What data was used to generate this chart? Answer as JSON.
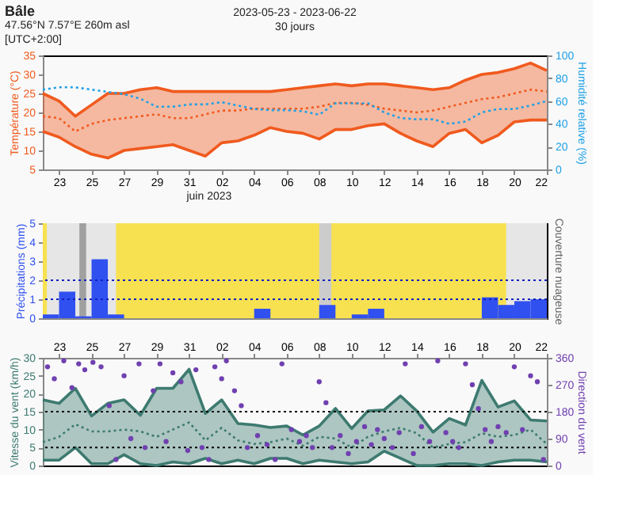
{
  "chart_data": [
    {
      "type": "line",
      "title": "Bâle",
      "subtitle": [
        "47.56°N 7.57°E 260m asl",
        "[UTC+2:00]"
      ],
      "annotations": [
        "2023-05-23 - 2023-06-22",
        "30 jours",
        "juin 2023"
      ],
      "ylabel": "Température (°C)",
      "y2label": "Humidité relative (%)",
      "x": [
        "2023-05-22",
        "2023-05-23",
        "2023-05-24",
        "2023-05-25",
        "2023-05-26",
        "2023-05-27",
        "2023-05-28",
        "2023-05-29",
        "2023-05-30",
        "2023-05-31",
        "2023-06-01",
        "2023-06-02",
        "2023-06-03",
        "2023-06-04",
        "2023-06-05",
        "2023-06-06",
        "2023-06-07",
        "2023-06-08",
        "2023-06-09",
        "2023-06-10",
        "2023-06-11",
        "2023-06-12",
        "2023-06-13",
        "2023-06-14",
        "2023-06-15",
        "2023-06-16",
        "2023-06-17",
        "2023-06-18",
        "2023-06-19",
        "2023-06-20",
        "2023-06-21",
        "2023-06-22"
      ],
      "xlim": [
        "2023-05-22",
        "2023-06-22"
      ],
      "xticks": [
        {
          "value": "2023-05-23",
          "label": "23"
        },
        {
          "value": "2023-05-25",
          "label": "25"
        },
        {
          "value": "2023-05-27",
          "label": "27"
        },
        {
          "value": "2023-05-29",
          "label": "29"
        },
        {
          "value": "2023-05-31",
          "label": "31"
        },
        {
          "value": "2023-06-02",
          "label": "02"
        },
        {
          "value": "2023-06-04",
          "label": "04"
        },
        {
          "value": "2023-06-06",
          "label": "06"
        },
        {
          "value": "2023-06-08",
          "label": "08"
        },
        {
          "value": "2023-06-10",
          "label": "10"
        },
        {
          "value": "2023-06-12",
          "label": "12"
        },
        {
          "value": "2023-06-14",
          "label": "14"
        },
        {
          "value": "2023-06-16",
          "label": "16"
        },
        {
          "value": "2023-06-18",
          "label": "18"
        },
        {
          "value": "2023-06-20",
          "label": "20"
        },
        {
          "value": "2023-06-22",
          "label": "22"
        }
      ],
      "ylim": [
        5,
        35
      ],
      "yticks": [
        5,
        10,
        15,
        20,
        25,
        30,
        35
      ],
      "y2lim": [
        0,
        100
      ],
      "y2ticks": [
        0,
        20,
        40,
        60,
        80,
        100
      ],
      "series": [
        {
          "color": "#f05a1e",
          "values": [
            15,
            13.5,
            11,
            9,
            8,
            10,
            10.5,
            11,
            11.5,
            10,
            8.5,
            12,
            12.5,
            14,
            16,
            15,
            14.5,
            13,
            15.5,
            15.5,
            16.5,
            17,
            14.5,
            12.5,
            11,
            14.5,
            15.5,
            12,
            14,
            17.5,
            18,
            18
          ]
        },
        {
          "color": "#f05a1e",
          "values": [
            25,
            23,
            19,
            22,
            25,
            25,
            26,
            26.5,
            25.5,
            25.5,
            25.5,
            25.5,
            25.5,
            25.5,
            25.5,
            26,
            26.5,
            27,
            27.5,
            27,
            27.5,
            27.5,
            27,
            26.5,
            26,
            26.5,
            28.5,
            30,
            30.5,
            31.5,
            33,
            31
          ]
        },
        {
          "color": "#f05a1e",
          "line_style": "dotted",
          "values": [
            19,
            18.5,
            15,
            17,
            18,
            18.5,
            19,
            19.5,
            18.5,
            18.5,
            19.5,
            20.5,
            20.5,
            21,
            21,
            21,
            21,
            21.5,
            22.5,
            22.5,
            22,
            21,
            20.5,
            20,
            20.5,
            21.5,
            22.5,
            23.5,
            24,
            25,
            26,
            25.5
          ],
          "lower": [
            15,
            13.5,
            11,
            9,
            8,
            10,
            10.5,
            11,
            11.5,
            10,
            8.5,
            12,
            12.5,
            14,
            16,
            15,
            14.5,
            13,
            15.5,
            15.5,
            16.5,
            17,
            14.5,
            12.5,
            11,
            14.5,
            15.5,
            12,
            14,
            17.5,
            18,
            18
          ],
          "upper": [
            25,
            23,
            19,
            22,
            25,
            25,
            26,
            26.5,
            25.5,
            25.5,
            25.5,
            25.5,
            25.5,
            25.5,
            25.5,
            26,
            26.5,
            27,
            27.5,
            27,
            27.5,
            27.5,
            27,
            26.5,
            26,
            26.5,
            28.5,
            30,
            30.5,
            31.5,
            33,
            31
          ]
        },
        {
          "color": "#1ea0e6",
          "line_style": "dotted",
          "axis": "y2",
          "values": [
            70,
            72,
            72,
            70,
            68,
            66,
            62,
            55,
            55,
            57,
            57,
            59,
            56,
            53,
            52,
            52,
            51,
            48,
            58,
            58,
            58,
            50,
            45,
            44,
            44,
            40,
            42,
            50,
            53,
            53,
            56,
            60
          ]
        }
      ]
    },
    {
      "type": "bar",
      "ylabel": "Précipitations (mm)",
      "y2label": "Couverture nuageuse",
      "xlim": [
        "2023-05-22",
        "2023-06-22"
      ],
      "ylim": [
        0,
        5
      ],
      "yticks": [
        0,
        1,
        2,
        3,
        4,
        5
      ],
      "tick_labels": "y",
      "bands": [
        {
          "axis": "x",
          "from": "2023-05-22",
          "to": "2023-06-22",
          "color": "#f7e150"
        },
        {
          "axis": "x",
          "from": "2023-05-22T06:00",
          "to": "2023-05-26T12:00",
          "color": "#e6e6e6"
        },
        {
          "axis": "x",
          "from": "2023-05-24T06:00",
          "to": "2023-05-24T16:00",
          "color": "#a0a0a0"
        },
        {
          "axis": "x",
          "from": "2023-06-08T00:00",
          "to": "2023-06-08T18:00",
          "color": "#cccccc"
        },
        {
          "axis": "x",
          "from": "2023-06-19T12:00",
          "to": "2023-06-22",
          "color": "#e6e6e6"
        }
      ],
      "ref_lines": [
        {
          "axis": "y",
          "value": 1,
          "color": "#1020c0",
          "line_style": "dotted"
        },
        {
          "axis": "y",
          "value": 2,
          "color": "#1020c0",
          "line_style": "dotted"
        }
      ],
      "series": [
        {
          "color": "#3050f0",
          "x": [
            "2023-05-22T12:00",
            "2023-05-23T12:00",
            "2023-05-24T12:00",
            "2023-05-25T12:00",
            "2023-05-26T12:00",
            "2023-05-27T12:00",
            "2023-05-28T12:00",
            "2023-05-29T12:00",
            "2023-05-30T12:00",
            "2023-05-31T12:00",
            "2023-06-01T12:00",
            "2023-06-02T12:00",
            "2023-06-03T12:00",
            "2023-06-04T12:00",
            "2023-06-05T12:00",
            "2023-06-06T12:00",
            "2023-06-07T12:00",
            "2023-06-08T12:00",
            "2023-06-09T12:00",
            "2023-06-10T12:00",
            "2023-06-11T12:00",
            "2023-06-12T12:00",
            "2023-06-13T12:00",
            "2023-06-14T12:00",
            "2023-06-15T12:00",
            "2023-06-16T12:00",
            "2023-06-17T12:00",
            "2023-06-18T12:00",
            "2023-06-19T12:00",
            "2023-06-20T12:00",
            "2023-06-21T12:00"
          ],
          "values": [
            0.2,
            1.4,
            0.1,
            3.1,
            0.2,
            0,
            0,
            0,
            0,
            0,
            0,
            0,
            0,
            0.5,
            0,
            0,
            0,
            0.7,
            0,
            0.2,
            0.5,
            0,
            0,
            0,
            0,
            0,
            0,
            1.1,
            0.7,
            0.9,
            1.0
          ]
        }
      ]
    },
    {
      "type": "line",
      "ylabel": "Vitesse du vent (km/h)",
      "y2label": "Direction du vent",
      "x": [
        "2023-05-22",
        "2023-05-23",
        "2023-05-24",
        "2023-05-25",
        "2023-05-26",
        "2023-05-27",
        "2023-05-28",
        "2023-05-29",
        "2023-05-30",
        "2023-05-31",
        "2023-06-01",
        "2023-06-02",
        "2023-06-03",
        "2023-06-04",
        "2023-06-05",
        "2023-06-06",
        "2023-06-07",
        "2023-06-08",
        "2023-06-09",
        "2023-06-10",
        "2023-06-11",
        "2023-06-12",
        "2023-06-13",
        "2023-06-14",
        "2023-06-15",
        "2023-06-16",
        "2023-06-17",
        "2023-06-18",
        "2023-06-19",
        "2023-06-20",
        "2023-06-21",
        "2023-06-22"
      ],
      "xlim": [
        "2023-05-22",
        "2023-06-22"
      ],
      "xticks": [
        {
          "value": "2023-05-23",
          "label": "23"
        },
        {
          "value": "2023-05-25",
          "label": "25"
        },
        {
          "value": "2023-05-27",
          "label": "27"
        },
        {
          "value": "2023-05-29",
          "label": "29"
        },
        {
          "value": "2023-05-31",
          "label": "31"
        },
        {
          "value": "2023-06-02",
          "label": "02"
        },
        {
          "value": "2023-06-04",
          "label": "04"
        },
        {
          "value": "2023-06-06",
          "label": "06"
        },
        {
          "value": "2023-06-08",
          "label": "08"
        },
        {
          "value": "2023-06-10",
          "label": "10"
        },
        {
          "value": "2023-06-12",
          "label": "12"
        },
        {
          "value": "2023-06-14",
          "label": "14"
        },
        {
          "value": "2023-06-16",
          "label": "16"
        },
        {
          "value": "2023-06-18",
          "label": "18"
        },
        {
          "value": "2023-06-20",
          "label": "20"
        },
        {
          "value": "2023-06-22",
          "label": "22"
        }
      ],
      "ylim": [
        0,
        30
      ],
      "yticks": [
        0,
        5,
        10,
        15,
        20,
        25,
        30
      ],
      "y2lim": [
        0,
        360
      ],
      "y2ticks": [
        0,
        90,
        180,
        270,
        360
      ],
      "ref_lines": [
        {
          "axis": "y",
          "value": 5,
          "color": "#000000",
          "line_style": "dotted"
        },
        {
          "axis": "y",
          "value": 15,
          "color": "#000000",
          "line_style": "dotted"
        }
      ],
      "series": [
        {
          "color": "#3d7a70",
          "values": [
            1.5,
            1.5,
            5,
            0.5,
            0.5,
            3,
            0.5,
            0,
            1,
            0.5,
            2,
            0.5,
            1.5,
            0.5,
            2,
            2,
            0.5,
            1.5,
            1,
            0.5,
            1,
            4,
            2,
            0,
            0,
            0.5,
            0.5,
            0,
            1,
            1.5,
            1.5,
            1
          ]
        },
        {
          "color": "#3d7a70",
          "values": [
            18.3,
            17.3,
            21.5,
            13.8,
            17.3,
            18.3,
            14,
            21.5,
            21.5,
            26.8,
            14.5,
            18.3,
            11.7,
            11.3,
            10.6,
            11,
            8.5,
            11,
            15.9,
            10.3,
            15.2,
            15.5,
            19.4,
            15.2,
            9.3,
            13.1,
            11.3,
            23.7,
            16.3,
            18,
            12.7,
            12.4
          ]
        },
        {
          "color": "#3d7a70",
          "line_style": "dotted",
          "values": [
            6.5,
            8,
            11.5,
            9.5,
            9.5,
            10,
            9.5,
            8,
            10,
            12,
            7,
            10.5,
            7,
            6,
            6.5,
            7.5,
            5.5,
            8,
            7.5,
            5,
            8,
            9.5,
            10.5,
            9,
            5,
            6,
            6.5,
            9,
            8,
            8.5,
            10,
            6
          ],
          "lower": [
            1.5,
            1.5,
            5,
            0.5,
            0.5,
            3,
            0.5,
            0,
            1,
            0.5,
            2,
            0.5,
            1.5,
            0.5,
            2,
            2,
            0.5,
            1.5,
            1,
            0.5,
            1,
            4,
            2,
            0,
            0,
            0.5,
            0.5,
            0,
            1,
            1.5,
            1.5,
            1
          ],
          "upper": [
            18.3,
            17.3,
            21.5,
            13.8,
            17.3,
            18.3,
            14,
            21.5,
            21.5,
            26.8,
            14.5,
            18.3,
            11.7,
            11.3,
            10.6,
            11,
            8.5,
            11,
            15.9,
            10.3,
            15.2,
            15.5,
            19.4,
            15.2,
            9.3,
            13.1,
            11.3,
            23.7,
            16.3,
            18,
            12.7,
            12.4
          ]
        },
        {
          "type": "scatter",
          "axis": "y2",
          "color": "#7040b0",
          "marker": "circle",
          "x": [
            "2023-05-22T07:00",
            "2023-05-22T17:00",
            "2023-05-23T07:00",
            "2023-05-23T19:00",
            "2023-05-24T05:00",
            "2023-05-24T14:00",
            "2023-05-25T02:00",
            "2023-05-25T14:00",
            "2023-05-26T02:00",
            "2023-05-26T12:00",
            "2023-05-27T00:00",
            "2023-05-27T10:00",
            "2023-05-27T22:00",
            "2023-05-28T07:00",
            "2023-05-28T19:00",
            "2023-05-29T05:00",
            "2023-05-29T14:00",
            "2023-05-30T00:00",
            "2023-05-30T12:00",
            "2023-05-30T22:00",
            "2023-05-31T10:00",
            "2023-05-31T19:00",
            "2023-06-01T05:00",
            "2023-06-01T14:00",
            "2023-06-02T00:00",
            "2023-06-02T07:00",
            "2023-06-02T19:00",
            "2023-06-03T05:00",
            "2023-06-03T14:00",
            "2023-06-04T05:00",
            "2023-06-04T19:00",
            "2023-06-05T07:00",
            "2023-06-05T17:00",
            "2023-06-06T07:00",
            "2023-06-06T19:00",
            "2023-06-07T05:00",
            "2023-06-07T14:00",
            "2023-06-08T00:00",
            "2023-06-08T10:00",
            "2023-06-08T19:00",
            "2023-06-09T07:00",
            "2023-06-09T19:00",
            "2023-06-10T07:00",
            "2023-06-10T19:00",
            "2023-06-11T05:00",
            "2023-06-11T14:00",
            "2023-06-12T00:00",
            "2023-06-12T12:00",
            "2023-06-12T22:00",
            "2023-06-13T07:00",
            "2023-06-13T19:00",
            "2023-06-14T07:00",
            "2023-06-14T19:00",
            "2023-06-15T07:00",
            "2023-06-15T19:00",
            "2023-06-16T05:00",
            "2023-06-16T14:00",
            "2023-06-17T00:00",
            "2023-06-17T10:00",
            "2023-06-17T19:00",
            "2023-06-18T05:00",
            "2023-06-18T14:00",
            "2023-06-19T00:00",
            "2023-06-19T12:00",
            "2023-06-20T00:00",
            "2023-06-20T12:00",
            "2023-06-21T00:00",
            "2023-06-21T10:00",
            "2023-06-21T19:00"
          ],
          "values": [
            330,
            290,
            350,
            260,
            340,
            320,
            345,
            330,
            200,
            20,
            300,
            90,
            340,
            60,
            250,
            340,
            80,
            310,
            280,
            50,
            320,
            60,
            20,
            330,
            290,
            350,
            250,
            200,
            60,
            100,
            70,
            20,
            340,
            120,
            80,
            100,
            60,
            280,
            210,
            60,
            100,
            40,
            80,
            130,
            70,
            120,
            90,
            60,
            110,
            340,
            40,
            130,
            80,
            350,
            110,
            80,
            60,
            340,
            270,
            190,
            120,
            80,
            130,
            110,
            330,
            120,
            300,
            280,
            20
          ]
        }
      ]
    }
  ]
}
